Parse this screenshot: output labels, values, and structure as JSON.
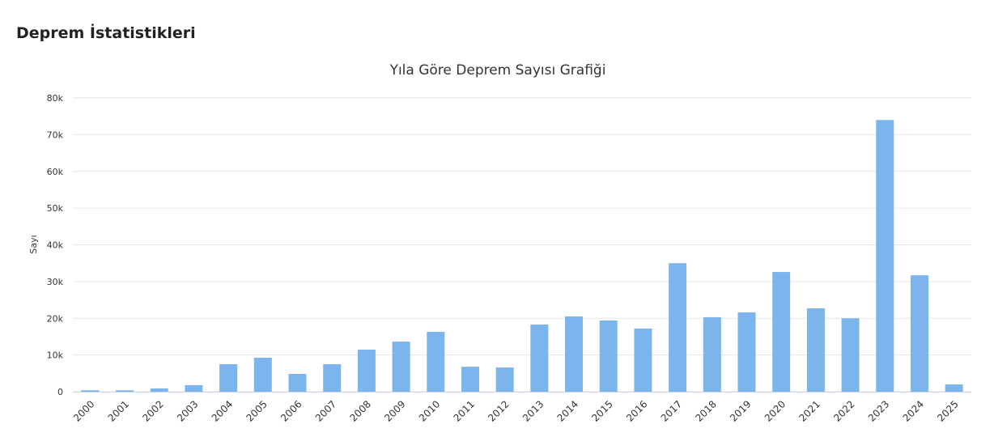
{
  "header": {
    "title": "Deprem İstatistikleri"
  },
  "chart_data": {
    "type": "bar",
    "title": "Yıla Göre Deprem Sayısı Grafiği",
    "y_label": "Sayı",
    "categories": [
      "2000",
      "2001",
      "2002",
      "2003",
      "2004",
      "2005",
      "2006",
      "2007",
      "2008",
      "2009",
      "2010",
      "2011",
      "2012",
      "2013",
      "2014",
      "2015",
      "2016",
      "2017",
      "2018",
      "2019",
      "2020",
      "2021",
      "2022",
      "2023",
      "2024",
      "2025"
    ],
    "values": [
      400,
      400,
      900,
      1800,
      7500,
      9250,
      4850,
      7500,
      11450,
      13650,
      16300,
      6800,
      6600,
      18300,
      20500,
      19400,
      17200,
      35000,
      20300,
      21600,
      32600,
      22700,
      20000,
      74000,
      31700,
      2000
    ],
    "color": "#7cb5ec",
    "ylim": [
      0,
      80000
    ],
    "yticks": [
      0,
      {
        "value": 10000,
        "label": "10k"
      },
      {
        "value": 20000,
        "label": "20k"
      },
      {
        "value": 30000,
        "label": "30k"
      },
      {
        "value": 40000,
        "label": "40k"
      },
      {
        "value": 50000,
        "label": "50k"
      },
      {
        "value": 60000,
        "label": "60k"
      },
      {
        "value": 70000,
        "label": "70k"
      },
      {
        "value": 80000,
        "label": "80k"
      }
    ],
    "grid": true
  }
}
